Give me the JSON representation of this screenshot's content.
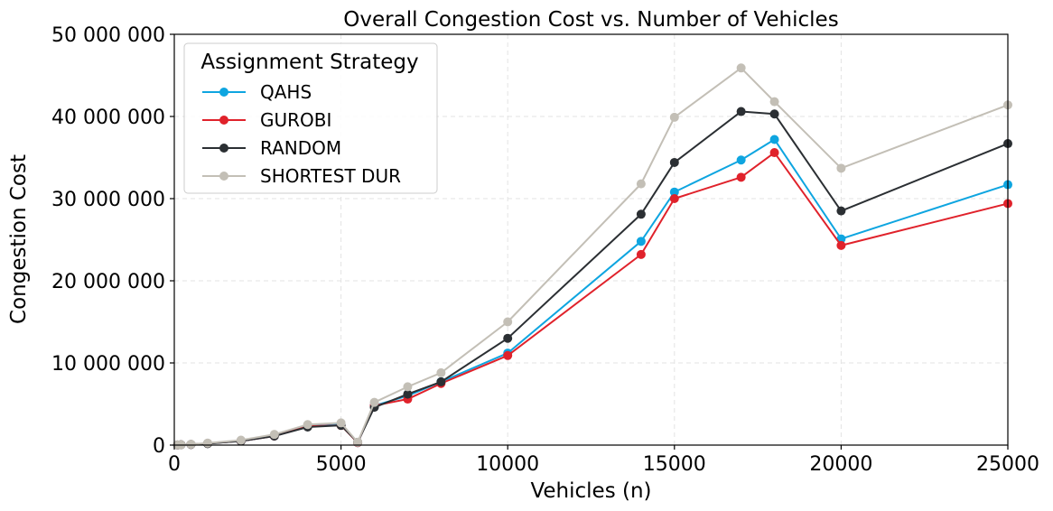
{
  "chart_data": {
    "type": "line",
    "title": "Overall Congestion Cost vs. Number of Vehicles",
    "xlabel": "Vehicles (n)",
    "ylabel": "Congestion Cost",
    "xlim": [
      0,
      25000
    ],
    "ylim": [
      0,
      50000000
    ],
    "xticks": [
      0,
      5000,
      10000,
      15000,
      20000,
      25000
    ],
    "xtick_labels": [
      "0",
      "5000",
      "10000",
      "15000",
      "20000",
      "25000"
    ],
    "yticks": [
      0,
      10000000,
      20000000,
      30000000,
      40000000,
      50000000
    ],
    "ytick_labels": [
      "0",
      "10 000 000",
      "20 000 000",
      "30 000 000",
      "40 000 000",
      "50 000 000"
    ],
    "grid": true,
    "legend": {
      "title": "Assignment Strategy",
      "position": "top-left"
    },
    "x": [
      100,
      200,
      500,
      1000,
      2000,
      3000,
      4000,
      5000,
      5500,
      6000,
      7000,
      8000,
      10000,
      14000,
      15000,
      17000,
      18000,
      20000,
      25000
    ],
    "series": [
      {
        "name": "QAHS",
        "color": "#0ea5e0",
        "values": [
          20000,
          40000,
          80000,
          200000,
          500000,
          1100000,
          2300000,
          2500000,
          300000,
          4800000,
          6000000,
          7700000,
          11200000,
          24800000,
          30800000,
          34700000,
          37200000,
          25100000,
          31700000
        ]
      },
      {
        "name": "GUROBI",
        "color": "#e0222b",
        "values": [
          20000,
          40000,
          80000,
          200000,
          500000,
          1100000,
          2300000,
          2400000,
          300000,
          4800000,
          5600000,
          7500000,
          10900000,
          23200000,
          30000000,
          32600000,
          35600000,
          24300000,
          29400000
        ]
      },
      {
        "name": "RANDOM",
        "color": "#2b2f33",
        "values": [
          20000,
          40000,
          80000,
          180000,
          500000,
          1100000,
          2200000,
          2400000,
          350000,
          4600000,
          6200000,
          7700000,
          13000000,
          28100000,
          34400000,
          40600000,
          40300000,
          28500000,
          36700000
        ]
      },
      {
        "name": "SHORTEST DUR",
        "color": "#c3bfb6",
        "values": [
          20000,
          40000,
          100000,
          250000,
          600000,
          1300000,
          2500000,
          2700000,
          350000,
          5200000,
          7100000,
          8800000,
          15000000,
          31800000,
          39900000,
          45900000,
          41800000,
          33700000,
          41400000
        ]
      }
    ]
  }
}
